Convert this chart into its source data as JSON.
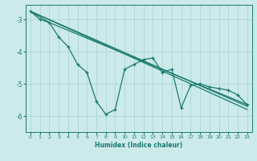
{
  "xlabel": "Humidex (Indice chaleur)",
  "bg_color": "#cceaea",
  "grid_color": "#b0d8d8",
  "line_color": "#1a7a6e",
  "xlim": [
    -0.5,
    23.5
  ],
  "ylim": [
    -6.5,
    -2.55
  ],
  "xticks": [
    0,
    1,
    2,
    3,
    4,
    5,
    6,
    7,
    8,
    9,
    10,
    11,
    12,
    13,
    14,
    15,
    16,
    17,
    18,
    19,
    20,
    21,
    22,
    23
  ],
  "yticks": [
    -3,
    -4,
    -5,
    -6
  ],
  "line1_x": [
    0,
    1,
    2,
    3,
    4,
    5,
    6,
    7,
    8,
    9,
    10,
    11,
    12,
    13,
    14,
    15,
    16,
    17,
    18,
    19,
    20,
    21,
    22,
    23
  ],
  "line1_y": [
    -2.75,
    -3.0,
    -3.1,
    -3.55,
    -3.85,
    -4.4,
    -4.65,
    -5.55,
    -5.95,
    -5.8,
    -4.55,
    -4.4,
    -4.25,
    -4.2,
    -4.65,
    -4.55,
    -5.75,
    -5.05,
    -5.0,
    -5.1,
    -5.15,
    -5.2,
    -5.35,
    -5.65
  ],
  "line2_x": [
    0,
    2,
    23
  ],
  "line2_y": [
    -2.75,
    -3.1,
    -5.65
  ],
  "line3_x": [
    0,
    23
  ],
  "line3_y": [
    -2.75,
    -5.7
  ],
  "line4_x": [
    0,
    23
  ],
  "line4_y": [
    -2.75,
    -5.8
  ]
}
